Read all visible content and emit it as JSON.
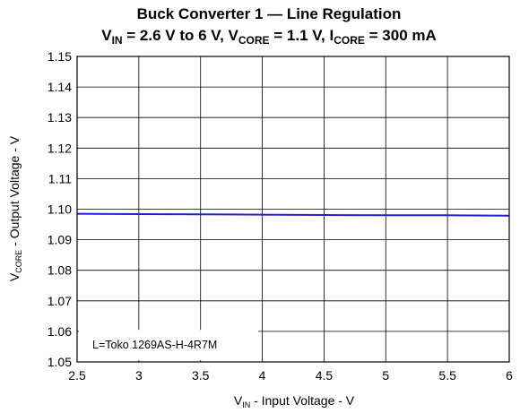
{
  "chart_data": {
    "type": "line",
    "title_line1": "Buck Converter 1 — Line Regulation",
    "title_line2": {
      "p1": "V",
      "s1": "IN",
      "p2": " = 2.6 V to 6 V, V",
      "s2": "CORE",
      "p3": " = 1.1 V, I",
      "s3": "CORE",
      "p4": " = 300 mA"
    },
    "xlabel": {
      "main": "V",
      "sub": "IN",
      "rest": " - Input Voltage - V"
    },
    "ylabel": {
      "main": "V",
      "sub": "CORE",
      "rest": " - Output Voltage - V"
    },
    "xlim": [
      2.5,
      6
    ],
    "ylim": [
      1.05,
      1.15
    ],
    "x_ticks": [
      "2.5",
      "3",
      "3.5",
      "4",
      "4.5",
      "5",
      "5.5",
      "6"
    ],
    "y_ticks": [
      "1.05",
      "1.06",
      "1.07",
      "1.08",
      "1.09",
      "1.10",
      "1.11",
      "1.12",
      "1.13",
      "1.14",
      "1.15"
    ],
    "grid": true,
    "series": [
      {
        "color": "#1f1fd0",
        "x": [
          2.5,
          3,
          3.5,
          4,
          4.5,
          5,
          5.5,
          6
        ],
        "y": [
          1.0985,
          1.0984,
          1.0983,
          1.0982,
          1.0981,
          1.098,
          1.098,
          1.0979
        ]
      }
    ],
    "annotation": "L=Toko 1269AS-H-4R7M"
  }
}
